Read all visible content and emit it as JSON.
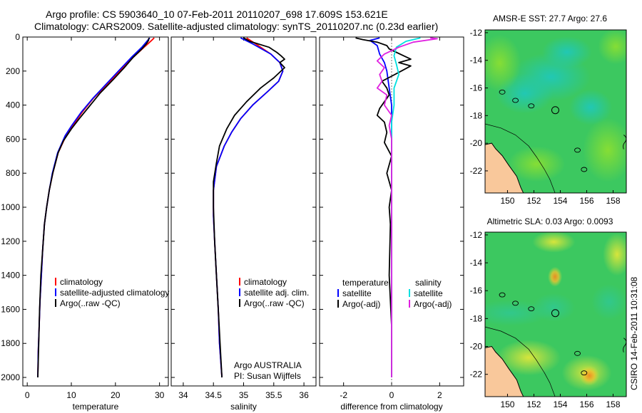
{
  "header": {
    "title_line1": "Argo profile: CS 5903640_10 07-Feb-2011 20110207_698 17.609S 153.621E",
    "title_line2": "Climatology: CARS2009. Satellite-adjusted climatology: synTS_20110207.nc (0.23d earlier)"
  },
  "side_label": "CSIRO 14-Feb-2011 10:31:08",
  "colors": {
    "climatology": "#ff0000",
    "satellite": "#0000ff",
    "argo": "#000000",
    "satellite_salinity": "#00e0e0",
    "argo_salinity_adj": "#e020e0",
    "land": "#f9c89b"
  },
  "chart_data": [
    {
      "type": "line",
      "id": "temperature",
      "xlabel": "temperature",
      "ylabel": "",
      "xlim": [
        -1,
        32
      ],
      "ylim": [
        2050,
        0
      ],
      "xticks": [
        0,
        10,
        20,
        30
      ],
      "yticks": [
        0,
        200,
        400,
        600,
        800,
        1000,
        1200,
        1400,
        1600,
        1800,
        2000
      ],
      "legend": [
        "climatology",
        "satellite-adjusted climatology",
        "Argo(..raw -QC)"
      ],
      "series": [
        {
          "name": "climatology",
          "x": [
            28.8,
            28.2,
            26.5,
            24.0,
            21.0,
            18.0,
            15.0,
            12.5,
            10.3,
            8.8,
            7.0,
            5.8,
            5.0,
            4.4,
            3.9,
            3.5,
            3.2,
            2.9,
            2.7,
            2.5,
            2.4
          ],
          "depth": [
            5,
            20,
            60,
            120,
            200,
            280,
            360,
            440,
            520,
            580,
            680,
            800,
            900,
            1000,
            1100,
            1250,
            1400,
            1550,
            1700,
            1850,
            2000
          ]
        },
        {
          "name": "satellite-adjusted climatology",
          "x": [
            27.8,
            27.3,
            26.0,
            23.6,
            20.7,
            17.8,
            14.9,
            12.3,
            10.1,
            8.6,
            6.9,
            5.7,
            5.0,
            4.4,
            3.9,
            3.5,
            3.2,
            2.9,
            2.7,
            2.5,
            2.4
          ],
          "depth": [
            5,
            20,
            60,
            120,
            200,
            280,
            360,
            440,
            520,
            580,
            680,
            800,
            900,
            1000,
            1100,
            1250,
            1400,
            1550,
            1700,
            1850,
            2000
          ]
        },
        {
          "name": "Argo(..raw -QC)",
          "x": [
            27.6,
            27.5,
            27.0,
            26.0,
            24.0,
            22.0,
            19.5,
            16.5,
            14.0,
            11.8,
            10.0,
            8.2,
            7.0,
            5.8,
            5.0,
            4.4,
            3.9,
            3.5,
            3.1,
            2.8,
            2.6,
            2.4
          ],
          "depth": [
            5,
            20,
            40,
            70,
            120,
            180,
            250,
            330,
            410,
            480,
            540,
            610,
            680,
            800,
            900,
            1000,
            1100,
            1250,
            1400,
            1600,
            1800,
            2000
          ]
        }
      ]
    },
    {
      "type": "line",
      "id": "salinity",
      "xlabel": "salinity",
      "xlim": [
        33.8,
        36.2
      ],
      "ylim": [
        2050,
        0
      ],
      "xticks": [
        34,
        34.5,
        35,
        35.5,
        36
      ],
      "legend": [
        "climatology",
        "satellite adj. clim.",
        "Argo(..raw -QC)"
      ],
      "annotation_line1": "Argo AUSTRALIA",
      "annotation_line2": "PI: Susan Wijffels",
      "series": [
        {
          "name": "climatology",
          "x": [
            35.05,
            35.2,
            35.45,
            35.6,
            35.65,
            35.58,
            35.4,
            35.15,
            34.95,
            34.8,
            34.68,
            34.55,
            34.5,
            34.5,
            34.52,
            34.55,
            34.58,
            34.6,
            34.62,
            34.64
          ],
          "depth": [
            5,
            40,
            100,
            150,
            200,
            260,
            320,
            400,
            480,
            560,
            640,
            760,
            900,
            1050,
            1200,
            1400,
            1600,
            1800,
            1900,
            2000
          ]
        },
        {
          "name": "satellite adj. clim.",
          "x": [
            34.95,
            35.15,
            35.45,
            35.6,
            35.65,
            35.58,
            35.4,
            35.15,
            34.95,
            34.8,
            34.68,
            34.55,
            34.5,
            34.5,
            34.52,
            34.55,
            34.58,
            34.6,
            34.62,
            34.64
          ],
          "depth": [
            5,
            40,
            100,
            150,
            200,
            260,
            320,
            400,
            480,
            560,
            640,
            760,
            900,
            1050,
            1200,
            1400,
            1600,
            1800,
            1900,
            2000
          ]
        },
        {
          "name": "Argo(..raw -QC)",
          "x": [
            35.0,
            35.1,
            35.42,
            35.55,
            35.62,
            35.68,
            35.6,
            35.68,
            35.5,
            35.28,
            35.05,
            34.85,
            34.72,
            34.6,
            34.55,
            34.5,
            34.5,
            34.52,
            34.55,
            34.58,
            34.61,
            34.64
          ],
          "depth": [
            5,
            25,
            60,
            90,
            110,
            130,
            150,
            180,
            240,
            300,
            380,
            460,
            540,
            640,
            740,
            850,
            1000,
            1200,
            1400,
            1600,
            1800,
            2000
          ]
        }
      ]
    },
    {
      "type": "line",
      "id": "difference",
      "xlabel": "difference from climatology",
      "xlim": [
        -3,
        3
      ],
      "ylim": [
        2050,
        0
      ],
      "xticks": [
        -2,
        0,
        2
      ],
      "legend_groups": [
        "temperature",
        "salinity"
      ],
      "legend": [
        "satellite",
        "Argo(-adj)",
        "satellite",
        "Argo(-adj)"
      ],
      "series": [
        {
          "name": "temperature satellite",
          "x": [
            -0.5,
            -0.9,
            -0.6,
            -0.5,
            -0.3,
            -0.2,
            -0.1,
            0.0,
            0.0,
            0.0,
            0.0,
            0.0,
            0.0,
            0.0
          ],
          "depth": [
            5,
            20,
            50,
            100,
            150,
            200,
            300,
            400,
            500,
            700,
            900,
            1200,
            1600,
            2000
          ]
        },
        {
          "name": "temperature Argo(-adj)",
          "x": [
            -1.5,
            -1.2,
            -0.6,
            -0.2,
            -0.1,
            0.2,
            0.5,
            0.8,
            0.3,
            0.8,
            0.4,
            0.0,
            -0.4,
            -0.2,
            -0.1,
            -0.3,
            -0.5,
            -0.6,
            -0.3,
            -0.2,
            -0.3,
            0.0,
            -0.2,
            0.0,
            -0.1,
            -0.05,
            -0.1,
            0.0,
            0.0
          ],
          "depth": [
            5,
            15,
            30,
            50,
            70,
            90,
            110,
            130,
            150,
            170,
            200,
            230,
            260,
            300,
            340,
            380,
            420,
            460,
            500,
            560,
            620,
            700,
            800,
            900,
            1000,
            1100,
            1400,
            1700,
            2000
          ]
        },
        {
          "name": "salinity satellite",
          "x": [
            1.2,
            0.6,
            0.2,
            0.1,
            0.2,
            0.3,
            0.1,
            0.1,
            0.0,
            0.0,
            0.0,
            0.0,
            0.0
          ],
          "depth": [
            5,
            25,
            60,
            110,
            160,
            220,
            300,
            400,
            500,
            700,
            1000,
            1500,
            2000
          ]
        },
        {
          "name": "salinity Argo(-adj)",
          "x": [
            1.6,
            1.9,
            0.9,
            0.3,
            -0.3,
            -0.6,
            -0.3,
            -0.5,
            -0.4,
            -0.6,
            -0.2,
            -0.3,
            0.0,
            -0.1,
            0.0,
            0.0,
            0.0,
            0.0,
            0.0
          ],
          "depth": [
            5,
            10,
            30,
            60,
            100,
            140,
            180,
            220,
            260,
            300,
            340,
            400,
            460,
            520,
            600,
            700,
            1000,
            1500,
            2000
          ]
        }
      ]
    },
    {
      "type": "heatmap",
      "id": "sst_map",
      "title": "AMSR-E SST: 27.7 Argo: 27.6",
      "xticks": [
        150,
        152,
        154,
        156,
        158
      ],
      "yticks": [
        -12,
        -14,
        -16,
        -18,
        -20,
        -22
      ],
      "xlim": [
        148.3,
        159.0
      ],
      "ylim": [
        -23.6,
        -11.8
      ],
      "argo_position": {
        "lon": 153.621,
        "lat": -17.609
      }
    },
    {
      "type": "heatmap",
      "id": "sla_map",
      "title": "Altimetric SLA: 0.03 Argo: 0.0093",
      "xticks": [
        150,
        152,
        154,
        156,
        158
      ],
      "yticks": [
        -12,
        -14,
        -16,
        -18,
        -20,
        -22
      ],
      "xlim": [
        148.3,
        159.0
      ],
      "ylim": [
        -23.6,
        -11.8
      ],
      "argo_position": {
        "lon": 153.621,
        "lat": -17.609
      }
    }
  ]
}
